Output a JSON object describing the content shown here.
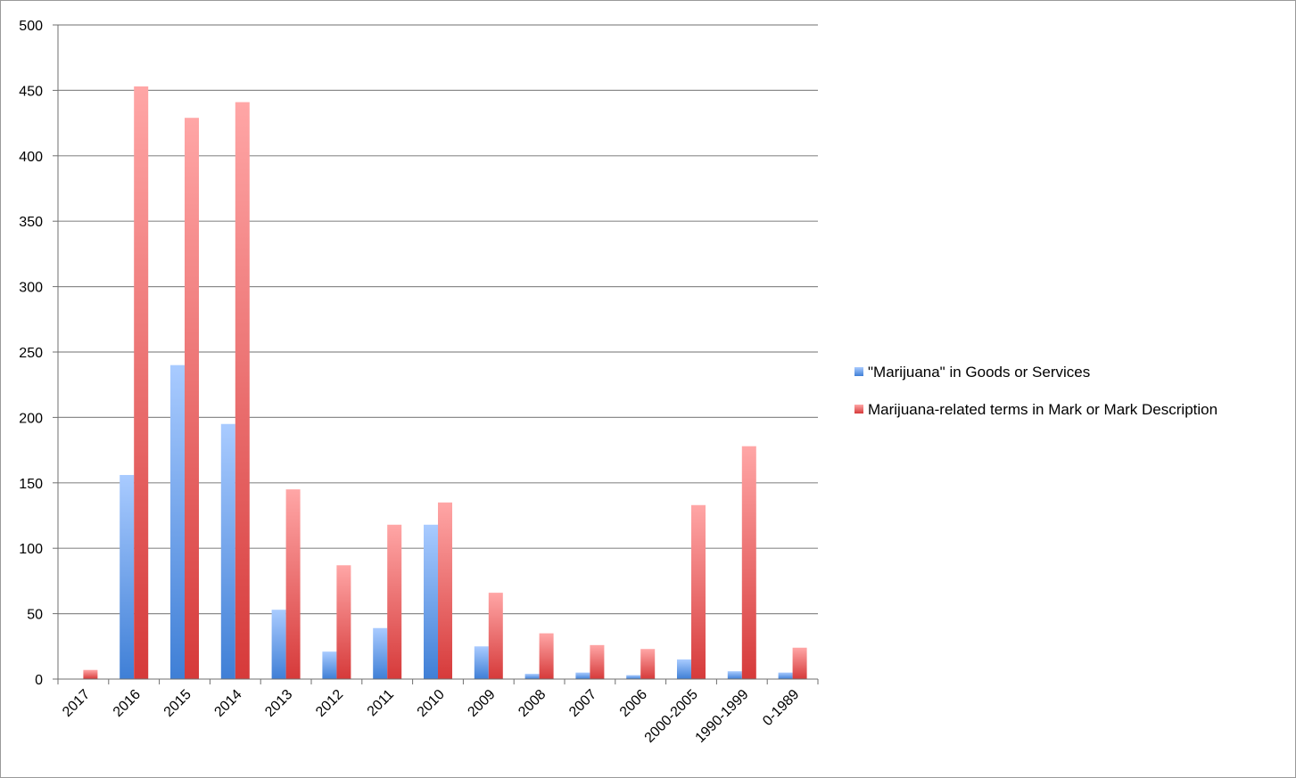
{
  "chart_data": {
    "type": "bar",
    "title": "",
    "xlabel": "",
    "ylabel": "",
    "ylim": [
      0,
      500
    ],
    "y_ticks": [
      0,
      50,
      100,
      150,
      200,
      250,
      300,
      350,
      400,
      450,
      500
    ],
    "grid": true,
    "legend_position": "right",
    "categories": [
      "2017",
      "2016",
      "2015",
      "2014",
      "2013",
      "2012",
      "2011",
      "2010",
      "2009",
      "2008",
      "2007",
      "2006",
      "2000-2005",
      "1990-1999",
      "0-1989"
    ],
    "series": [
      {
        "name": "\"Marijuana\" in Goods or Services",
        "color": "#5b9bd5",
        "values": [
          0,
          156,
          240,
          195,
          53,
          21,
          39,
          118,
          25,
          4,
          5,
          3,
          15,
          6,
          5
        ]
      },
      {
        "name": "Marijuana-related terms in Mark or Mark Description",
        "color": "#e0504f",
        "values": [
          7,
          453,
          429,
          441,
          145,
          87,
          118,
          135,
          66,
          35,
          26,
          23,
          133,
          178,
          24
        ]
      }
    ]
  }
}
